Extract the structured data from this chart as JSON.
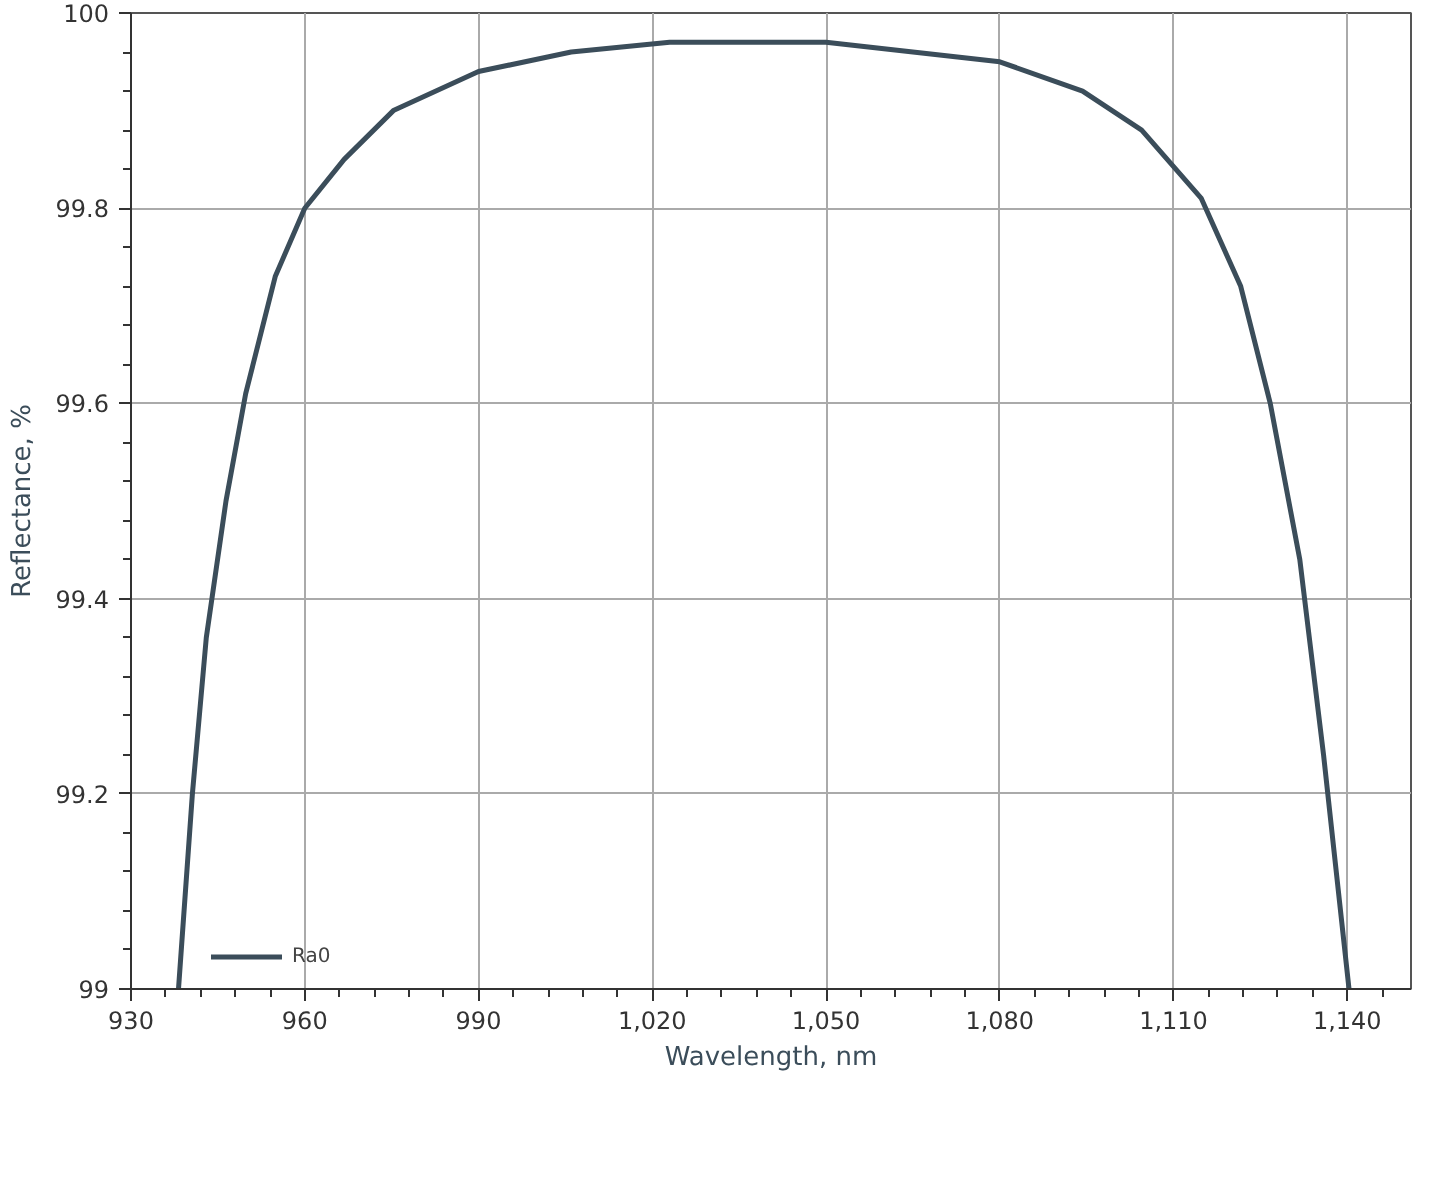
{
  "chart_data": {
    "type": "line",
    "xlabel": "Wavelength, nm",
    "ylabel": "Reflectance, %",
    "xlim": [
      930,
      1151
    ],
    "ylim": [
      99,
      100
    ],
    "xticks": [
      {
        "value": 930,
        "label": "930"
      },
      {
        "value": 960,
        "label": "960"
      },
      {
        "value": 990,
        "label": "990"
      },
      {
        "value": 1020,
        "label": "1,020"
      },
      {
        "value": 1050,
        "label": "1,050"
      },
      {
        "value": 1080,
        "label": "1,080"
      },
      {
        "value": 1110,
        "label": "1,110"
      },
      {
        "value": 1140,
        "label": "1,140"
      }
    ],
    "yticks": [
      99,
      {
        "value": 99.2,
        "label": "99.2"
      },
      {
        "value": 99.4,
        "label": "99.4"
      },
      {
        "value": 99.6,
        "label": "99.6"
      },
      {
        "value": 99.8,
        "label": "99.8"
      },
      100
    ],
    "grid": true,
    "legend": "bottom left",
    "marker": "none",
    "line_style": "solid",
    "series": [
      {
        "name": "Ra0",
        "color": "#3b4d5a",
        "x": [
          938.2,
          940.6,
          943.0,
          946.4,
          949.8,
          954.9,
          960,
          966.8,
          975.3,
          990,
          1006,
          1023,
          1050,
          1080,
          1094.3,
          1104.5,
          1114.8,
          1121.6,
          1126.7,
          1131.8,
          1135.9,
          1140.3
        ],
        "values": [
          99.0,
          99.2,
          99.36,
          99.5,
          99.61,
          99.73,
          99.8,
          99.85,
          99.9,
          99.94,
          99.96,
          99.97,
          99.97,
          99.95,
          99.92,
          99.88,
          99.81,
          99.72,
          99.6,
          99.44,
          99.24,
          99.0
        ]
      }
    ]
  }
}
